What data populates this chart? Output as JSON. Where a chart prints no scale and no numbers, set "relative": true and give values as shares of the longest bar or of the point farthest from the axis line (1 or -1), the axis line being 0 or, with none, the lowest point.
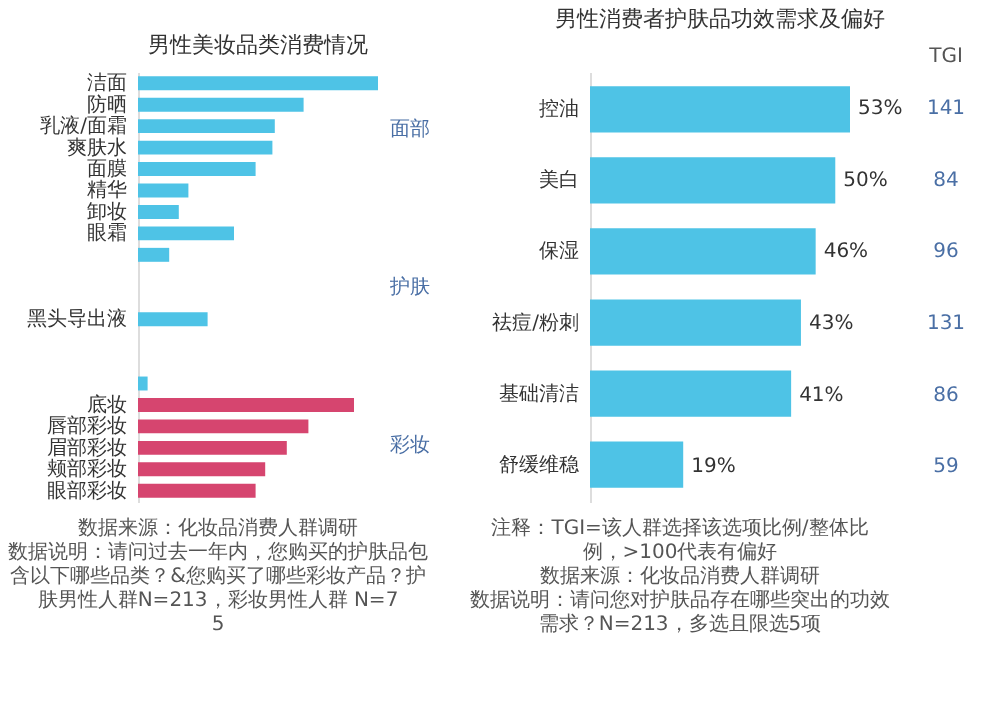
{
  "chart_data": [
    {
      "type": "bar",
      "orientation": "horizontal",
      "relative": true,
      "title": "男性美妆品类消费情况",
      "categories": [
        "洁面",
        "防晒",
        "乳液/面霜",
        "爽肤水",
        "面膜",
        "精华",
        "卸妆",
        "眼霜",
        null,
        null,
        null,
        "黑头导出液",
        null,
        null,
        null,
        "底妆",
        "唇部彩妆",
        "眉部彩妆",
        "颊部彩妆",
        "眼部彩妆"
      ],
      "values": [
        1,
        0.69,
        0.57,
        0.56,
        0.49,
        0.21,
        0.17,
        0.4,
        0.13,
        null,
        null,
        0.29,
        null,
        null,
        0.04,
        0.9,
        0.71,
        0.62,
        0.53,
        0.49
      ],
      "colors": [
        "#4ec3e6",
        "#4ec3e6",
        "#4ec3e6",
        "#4ec3e6",
        "#4ec3e6",
        "#4ec3e6",
        "#4ec3e6",
        "#4ec3e6",
        "#4ec3e6",
        "#4ec3e6",
        "#4ec3e6",
        "#4ec3e6",
        "#4ec3e6",
        "#4ec3e6",
        "#4ec3e6",
        "#d6456f",
        "#d6456f",
        "#d6456f",
        "#d6456f",
        "#d6456f"
      ],
      "annotations": [
        "面部",
        "护肤",
        "彩妆",
        "数据来源：化妆品消费人群调研",
        "数据说明：请问过去一年内，您购买的护肤品包含以下哪些品类？&您购买了哪些彩妆产品？护肤男性人群N=213，彩妆男性人群 N=75"
      ]
    },
    {
      "type": "bar",
      "orientation": "horizontal",
      "title": "男性消费者护肤品功效需求及偏好",
      "y2label": "TGI",
      "categories": [
        "控油",
        "美白",
        "保湿",
        "祛痘/粉刺",
        "基础清洁",
        "舒缓维稳"
      ],
      "values": [
        53,
        50,
        46,
        43,
        41,
        19
      ],
      "value_labels": [
        "53%",
        "50%",
        "46%",
        "43%",
        "41%",
        "19%"
      ],
      "color": "#4ec3e6",
      "annotations": [
        "141",
        "84",
        "96",
        "131",
        "86",
        "59",
        "注释：TGI=该人群选择该选项比例/整体比例，>100代表有偏好",
        "数据来源：化妆品消费人群调研",
        "数据说明：请问您对护肤品存在哪些突出的功效需求？N=213，多选且限选5项"
      ]
    }
  ]
}
